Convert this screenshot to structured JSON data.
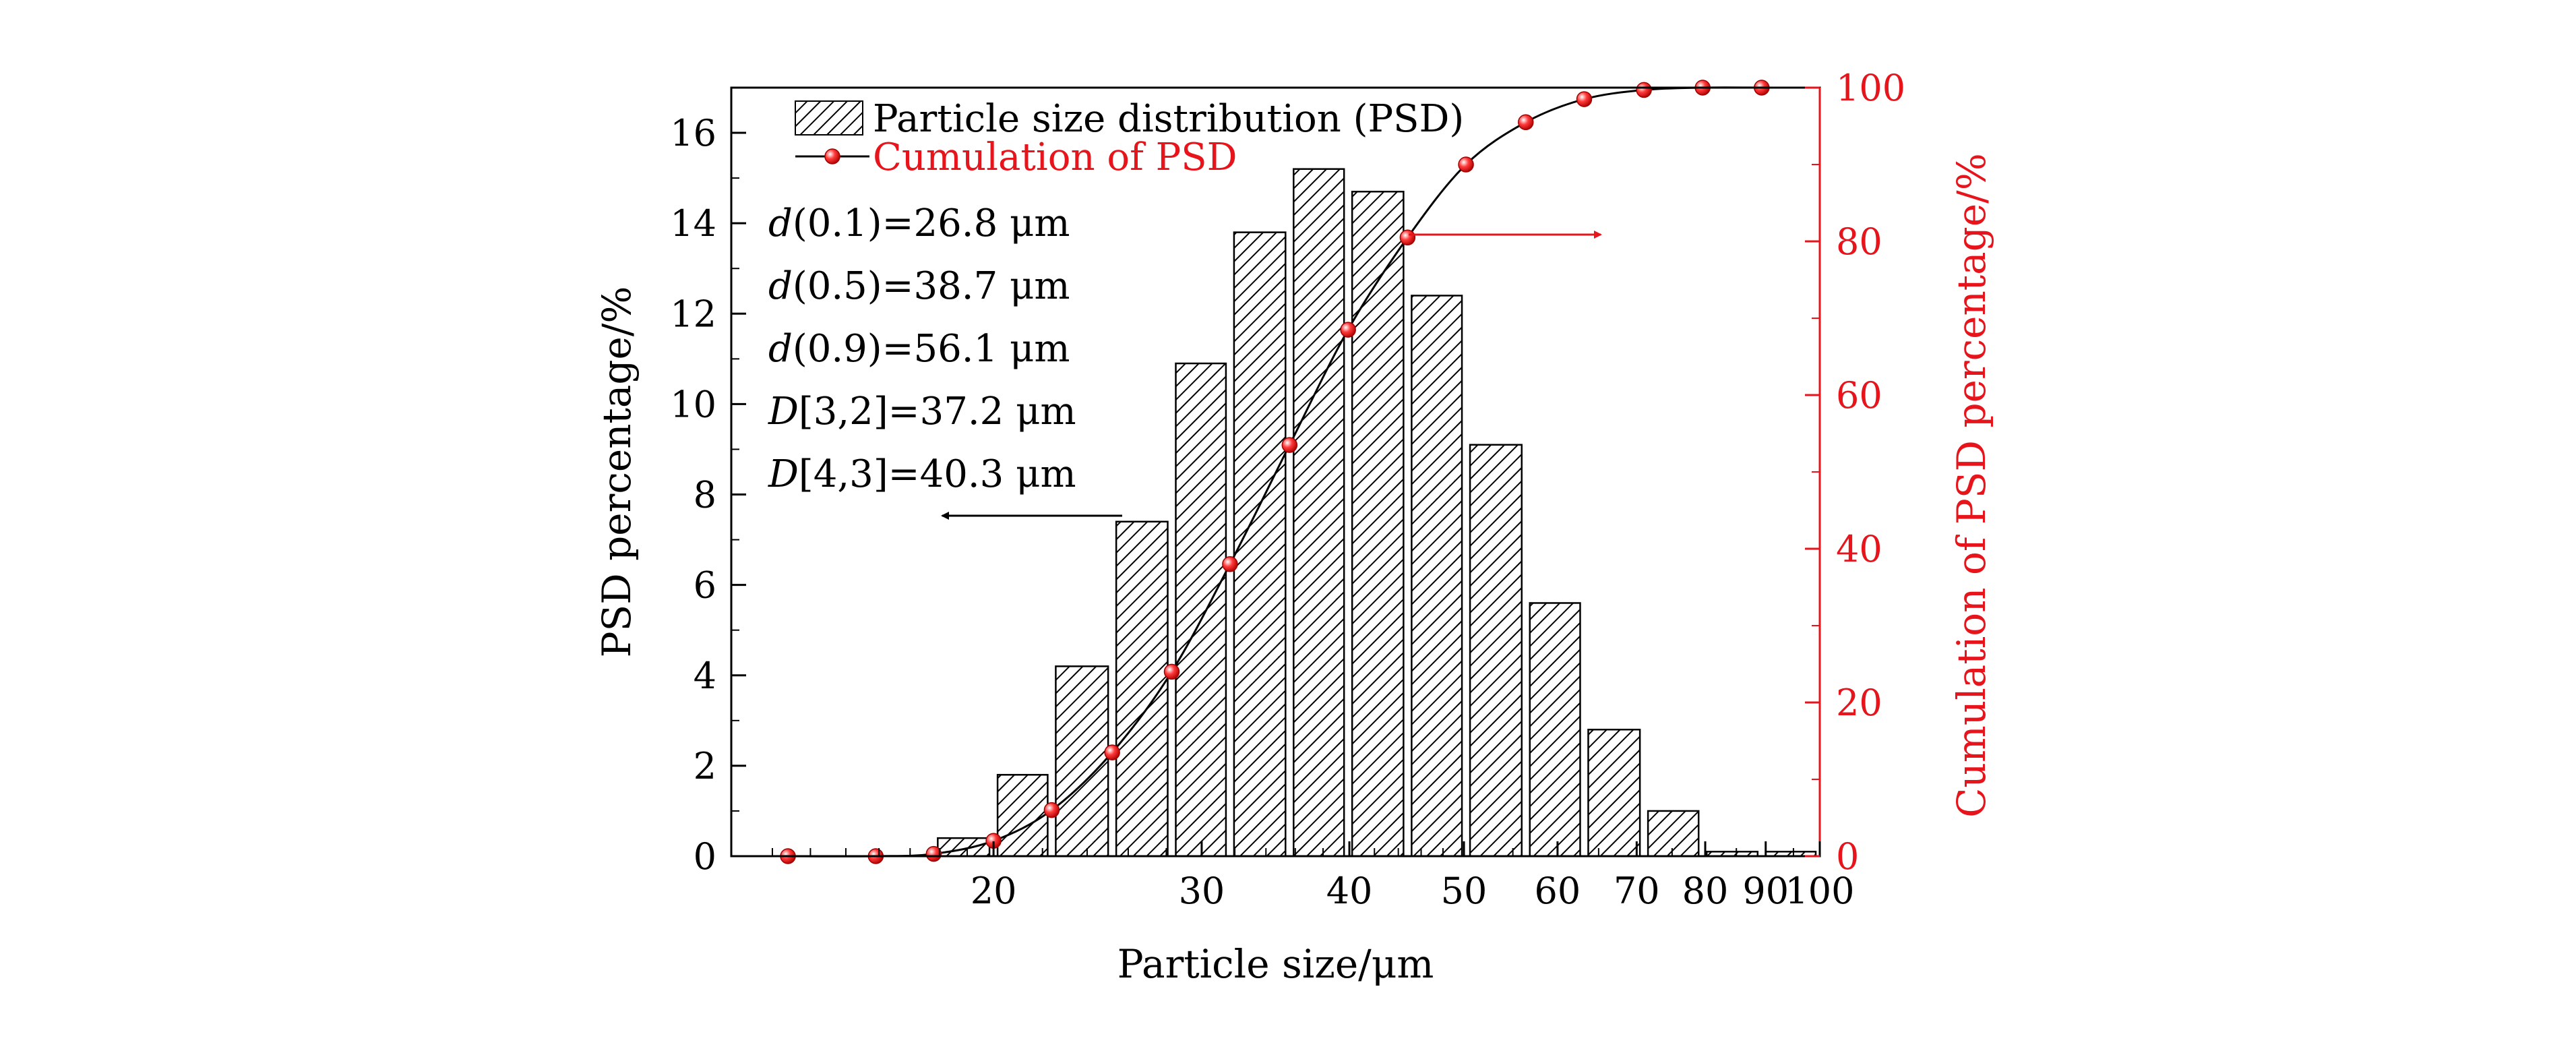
{
  "chart_data": {
    "type": "bar",
    "title": "",
    "xlabel": "Particle size/μm",
    "ylabel_left": "PSD percentage/%",
    "ylabel_right": "Cumulation of PSD percentage/%",
    "x_scale": "log",
    "xlim": [
      12,
      100
    ],
    "ylim_left": [
      0,
      17
    ],
    "ylim_right": [
      0,
      100
    ],
    "x_ticks": [
      {
        "value": 20,
        "label": "20"
      },
      {
        "value": 30,
        "label": "30"
      },
      {
        "value": 40,
        "label": "40"
      },
      {
        "value": 50,
        "label": "50"
      },
      {
        "value": 60,
        "label": "60"
      },
      {
        "value": 70,
        "label": "70"
      },
      {
        "value": 80,
        "label": "80"
      },
      {
        "value": 90,
        "label": "90"
      },
      {
        "value": 100,
        "label": "100"
      }
    ],
    "y_ticks_left": [
      {
        "value": 0,
        "label": "0"
      },
      {
        "value": 2,
        "label": "2"
      },
      {
        "value": 4,
        "label": "4"
      },
      {
        "value": 6,
        "label": "6"
      },
      {
        "value": 8,
        "label": "8"
      },
      {
        "value": 10,
        "label": "10"
      },
      {
        "value": 12,
        "label": "12"
      },
      {
        "value": 14,
        "label": "14"
      },
      {
        "value": 16,
        "label": "16"
      }
    ],
    "y_ticks_right": [
      {
        "value": 0,
        "label": "0"
      },
      {
        "value": 20,
        "label": "20"
      },
      {
        "value": 40,
        "label": "40"
      },
      {
        "value": 60,
        "label": "60"
      },
      {
        "value": 80,
        "label": "80"
      },
      {
        "value": 100,
        "label": "100"
      }
    ],
    "series": [
      {
        "name": "Particle size distribution (PSD)",
        "kind": "bar",
        "axis": "left",
        "bins": [
          {
            "from": 17.8,
            "to": 20.0,
            "value": 0.4
          },
          {
            "from": 20.0,
            "to": 22.4,
            "value": 1.8
          },
          {
            "from": 22.4,
            "to": 25.2,
            "value": 4.2
          },
          {
            "from": 25.2,
            "to": 28.3,
            "value": 7.4
          },
          {
            "from": 28.3,
            "to": 31.7,
            "value": 10.9
          },
          {
            "from": 31.7,
            "to": 35.6,
            "value": 13.8
          },
          {
            "from": 35.6,
            "to": 39.9,
            "value": 15.2
          },
          {
            "from": 39.9,
            "to": 44.8,
            "value": 14.7
          },
          {
            "from": 44.8,
            "to": 50.2,
            "value": 12.4
          },
          {
            "from": 50.2,
            "to": 56.4,
            "value": 9.1
          },
          {
            "from": 56.4,
            "to": 63.2,
            "value": 5.6
          },
          {
            "from": 63.2,
            "to": 71.0,
            "value": 2.8
          },
          {
            "from": 71.0,
            "to": 79.6,
            "value": 1.0
          },
          {
            "from": 79.6,
            "to": 89.3,
            "value": 0.1
          },
          {
            "from": 89.3,
            "to": 100.0,
            "value": 0.1
          }
        ]
      },
      {
        "name": "Cumulation of PSD",
        "kind": "line+markers",
        "axis": "right",
        "color": "#e8141b",
        "points": [
          {
            "x": 13.4,
            "y": 0
          },
          {
            "x": 15.9,
            "y": 0
          },
          {
            "x": 17.8,
            "y": 0.3
          },
          {
            "x": 20.0,
            "y": 2
          },
          {
            "x": 22.4,
            "y": 6
          },
          {
            "x": 25.2,
            "y": 13.5
          },
          {
            "x": 28.3,
            "y": 24
          },
          {
            "x": 31.7,
            "y": 38
          },
          {
            "x": 35.6,
            "y": 53.5
          },
          {
            "x": 39.9,
            "y": 68.5
          },
          {
            "x": 44.8,
            "y": 80.5
          },
          {
            "x": 50.2,
            "y": 90
          },
          {
            "x": 56.4,
            "y": 95.5
          },
          {
            "x": 63.2,
            "y": 98.5
          },
          {
            "x": 71.0,
            "y": 99.7
          },
          {
            "x": 79.6,
            "y": 100
          },
          {
            "x": 89.3,
            "y": 100
          }
        ]
      }
    ],
    "annotations": [
      {
        "italic": "d",
        "rest": "(0.1)=26.8 μm"
      },
      {
        "italic": "d",
        "rest": "(0.5)=38.7 μm"
      },
      {
        "italic": "d",
        "rest": "(0.9)=56.1 μm"
      },
      {
        "italic": "D",
        "rest": "[3,2]=37.2 μm"
      },
      {
        "italic": "D",
        "rest": "[4,3]=40.3 μm"
      }
    ],
    "legend_position": "top-left",
    "colors": {
      "axis": "#000000",
      "right_axis": "#e8141b",
      "bar_hatch": "#000000",
      "bar_fill": "#ffffff"
    }
  }
}
